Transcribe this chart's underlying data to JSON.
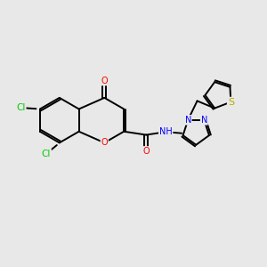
{
  "bg_color": "#e8e8e8",
  "atom_colors": {
    "C": "#000000",
    "O": "#ff0000",
    "N": "#0000ff",
    "Cl": "#00cc00",
    "S": "#bbaa00",
    "H": "#000000"
  },
  "bond_color": "#000000",
  "font_size": 7.0,
  "lw": 1.4
}
